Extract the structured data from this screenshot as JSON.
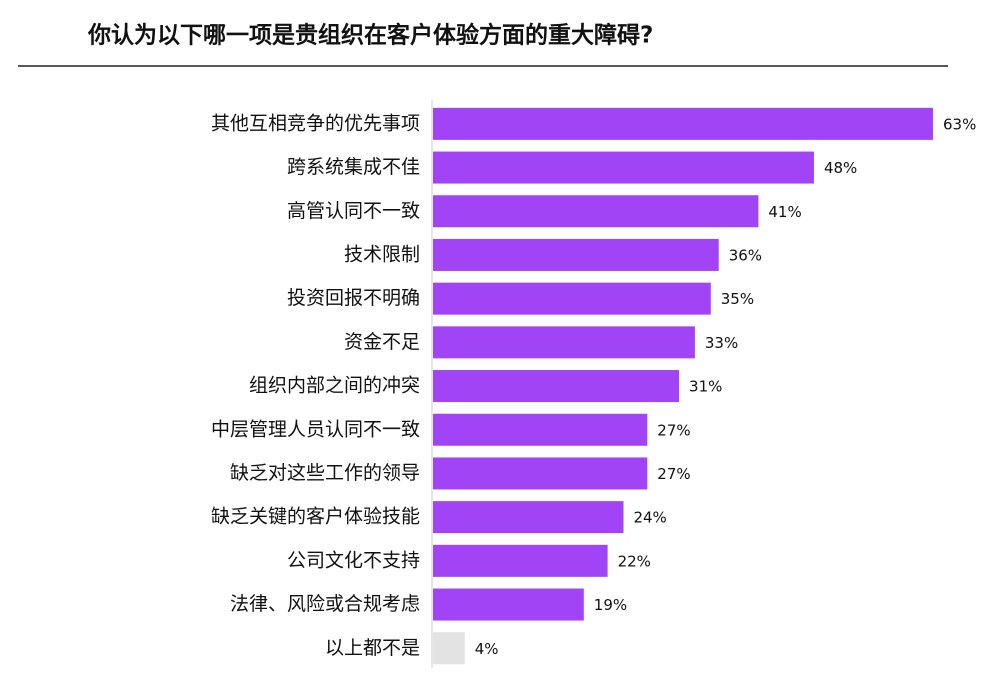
{
  "chart_data": {
    "type": "barh",
    "title": "你认为以下哪一项是贵组织在客户体验方面的重大障碍?",
    "categories": [
      "其他互相竞争的优先事项",
      "跨系统集成不佳",
      "高管认同不一致",
      "技术限制",
      "投资回报不明确",
      "资金不足",
      "组织内部之间的冲突",
      "中层管理人员认同不一致",
      "缺乏对这些工作的领导",
      "缺乏关键的客户体验技能",
      "公司文化不支持",
      "法律、风险或合规考虑",
      "以上都不是"
    ],
    "values": [
      63,
      48,
      41,
      36,
      35,
      33,
      31,
      27,
      27,
      24,
      22,
      19,
      4
    ],
    "value_labels": [
      "63%",
      "48%",
      "41%",
      "36%",
      "35%",
      "33%",
      "31%",
      "27%",
      "27%",
      "24%",
      "22%",
      "19%",
      "4%"
    ],
    "colors": [
      "#a044f5",
      "#a044f5",
      "#a044f5",
      "#a044f5",
      "#a044f5",
      "#a044f5",
      "#a044f5",
      "#a044f5",
      "#a044f5",
      "#a044f5",
      "#a044f5",
      "#a044f5",
      "#e3e3e3"
    ]
  }
}
